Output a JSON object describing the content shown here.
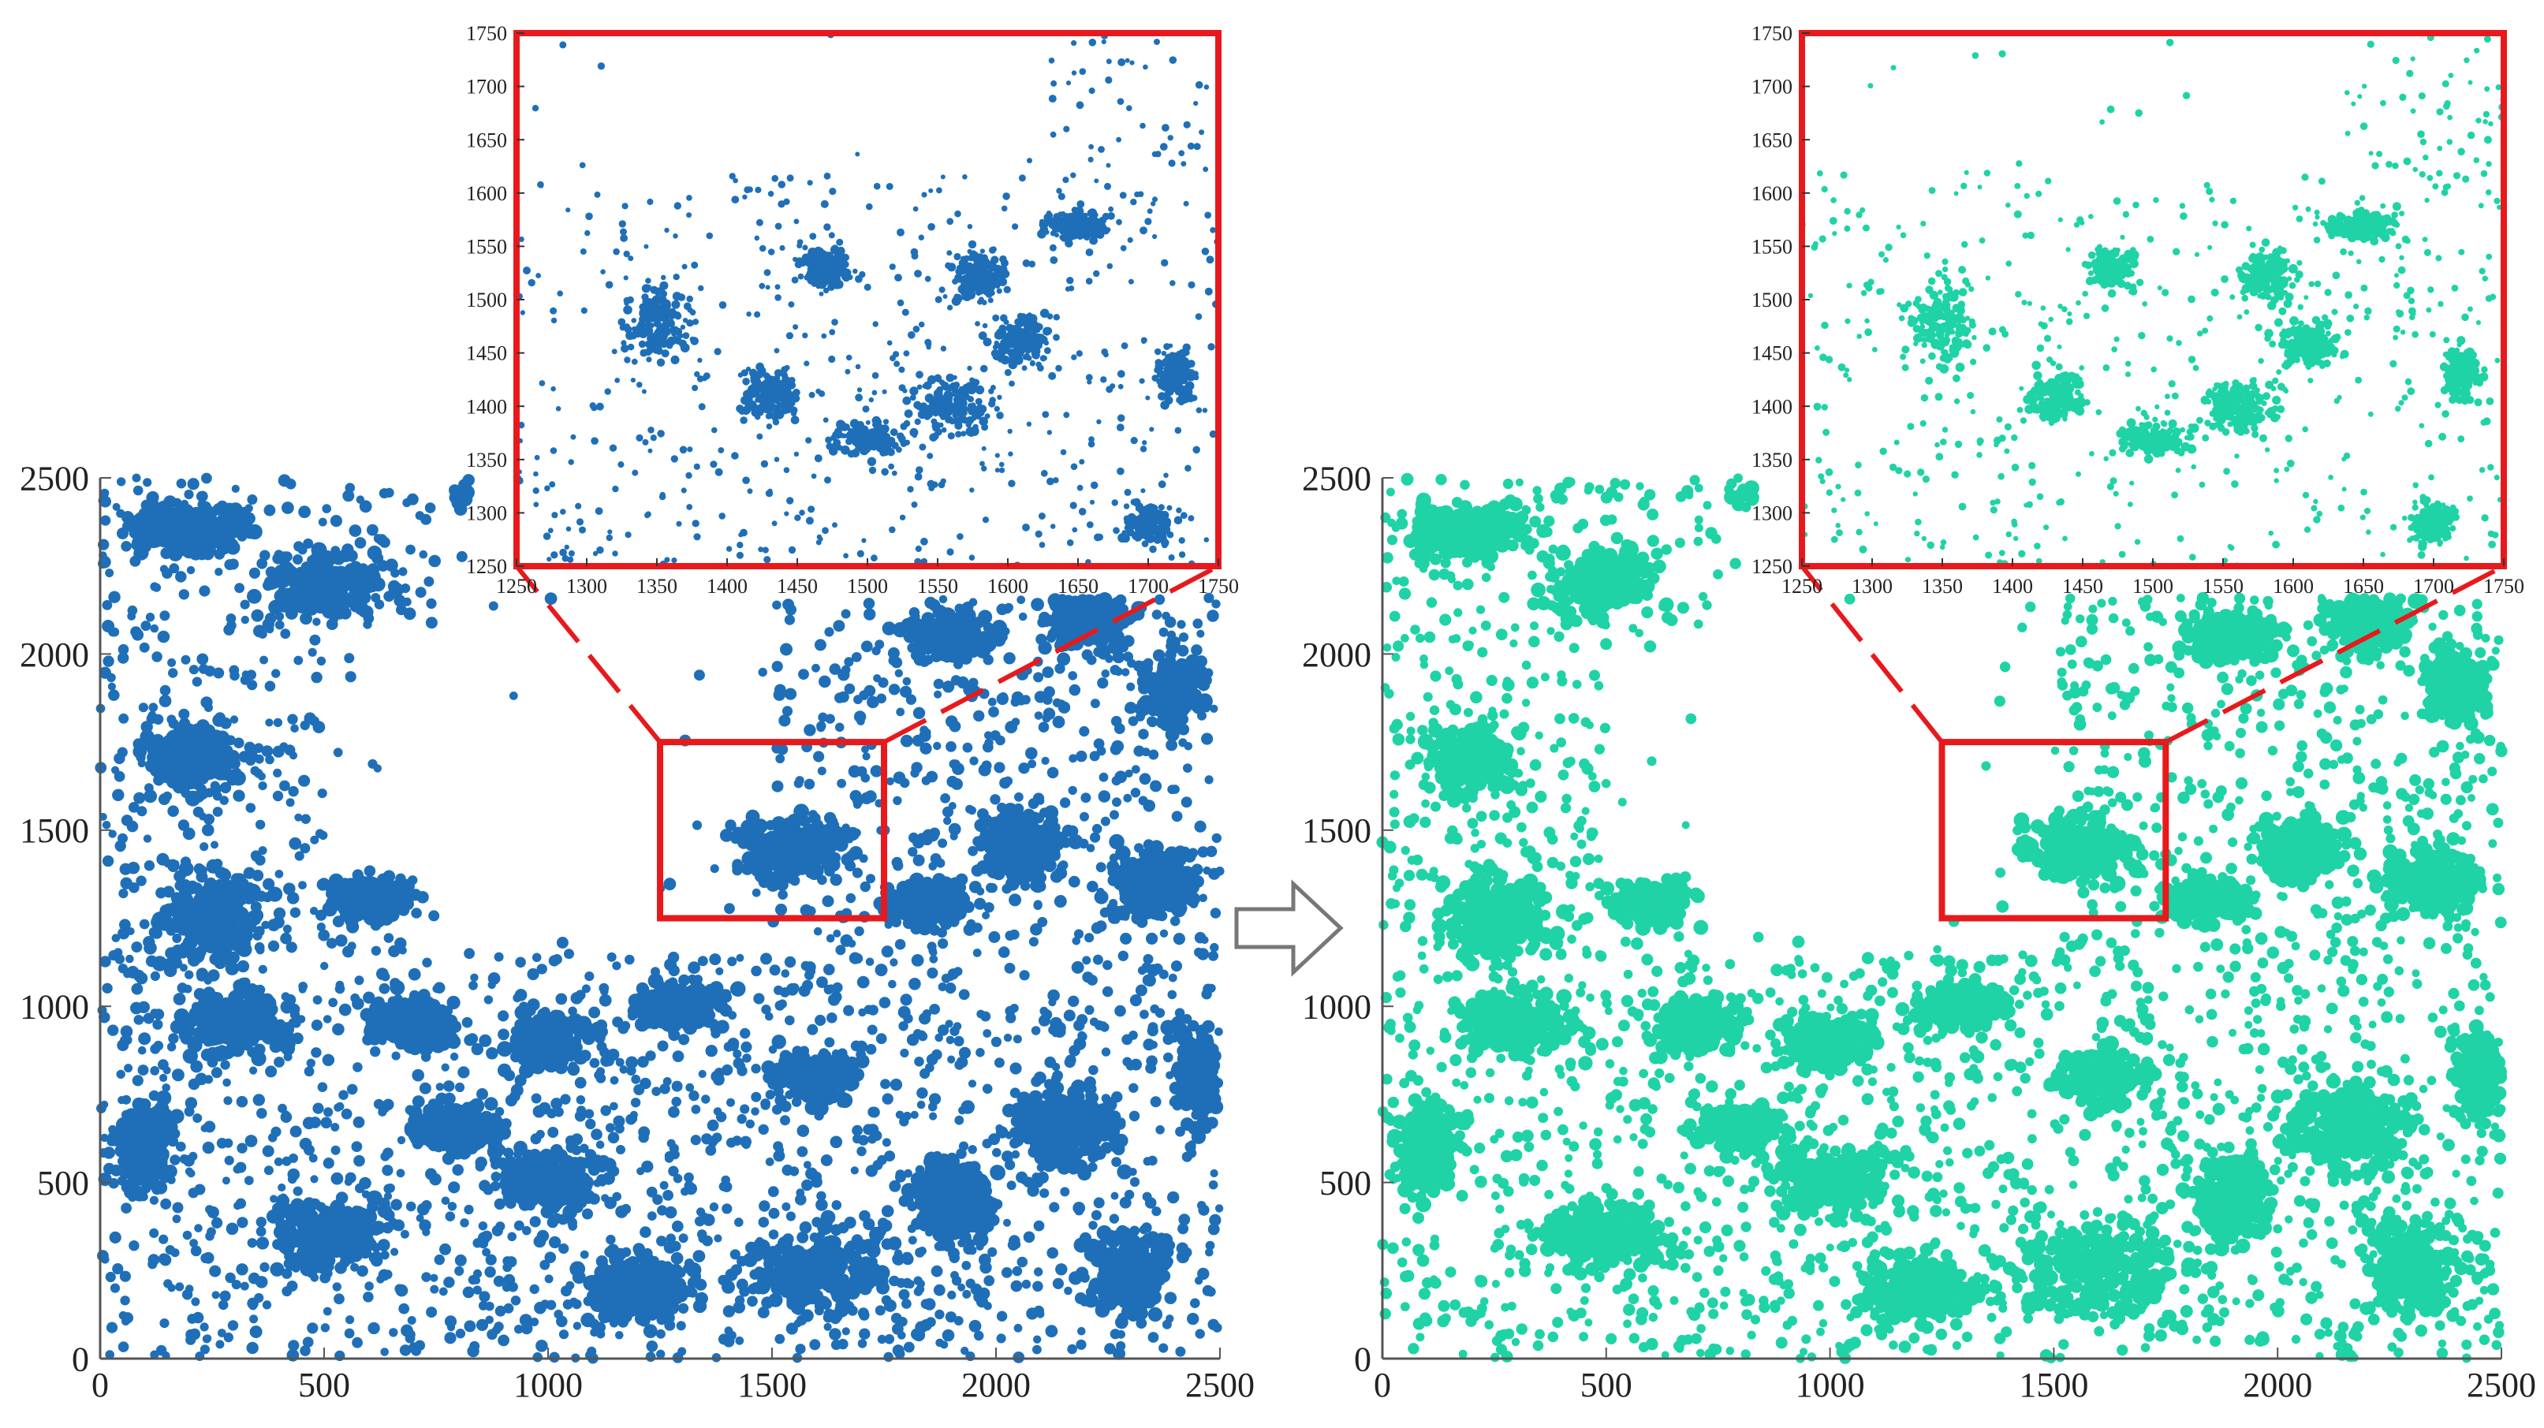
{
  "colors": {
    "left_points": "#1f6fb8",
    "right_points": "#1fd3a6",
    "highlight": "#e8191c",
    "axis": "#555555",
    "arrow_stroke": "#777777"
  },
  "icons": {
    "transition": "right-arrow-icon"
  },
  "chart_data": [
    {
      "name": "left-full",
      "type": "scatter",
      "color": "#1f6fb8",
      "xlim": [
        0,
        2500
      ],
      "ylim": [
        0,
        2500
      ],
      "xticks": [
        0,
        500,
        1000,
        1500,
        2000,
        2500
      ],
      "yticks": [
        0,
        500,
        1000,
        1500,
        2000,
        2500
      ],
      "highlight_box": {
        "x": [
          1250,
          1750
        ],
        "y": [
          1250,
          1750
        ]
      }
    },
    {
      "name": "left-inset",
      "type": "scatter",
      "color": "#1f6fb8",
      "xlim": [
        1250,
        1750
      ],
      "ylim": [
        1250,
        1750
      ],
      "xticks": [
        1250,
        1300,
        1350,
        1400,
        1450,
        1500,
        1550,
        1600,
        1650,
        1700,
        1750
      ],
      "yticks": [
        1250,
        1300,
        1350,
        1400,
        1450,
        1500,
        1550,
        1600,
        1650,
        1700,
        1750
      ]
    },
    {
      "name": "right-full",
      "type": "scatter",
      "color": "#1fd3a6",
      "xlim": [
        0,
        2500
      ],
      "ylim": [
        0,
        2500
      ],
      "xticks": [
        0,
        500,
        1000,
        1500,
        2000,
        2500
      ],
      "yticks": [
        0,
        500,
        1000,
        1500,
        2000,
        2500
      ],
      "highlight_box": {
        "x": [
          1250,
          1750
        ],
        "y": [
          1250,
          1750
        ]
      }
    },
    {
      "name": "right-inset",
      "type": "scatter",
      "color": "#1fd3a6",
      "xlim": [
        1250,
        1750
      ],
      "ylim": [
        1250,
        1750
      ],
      "xticks": [
        1250,
        1300,
        1350,
        1400,
        1450,
        1500,
        1550,
        1600,
        1650,
        1700,
        1750
      ],
      "yticks": [
        1250,
        1300,
        1350,
        1400,
        1450,
        1500,
        1550,
        1600,
        1650,
        1700,
        1750
      ]
    }
  ]
}
